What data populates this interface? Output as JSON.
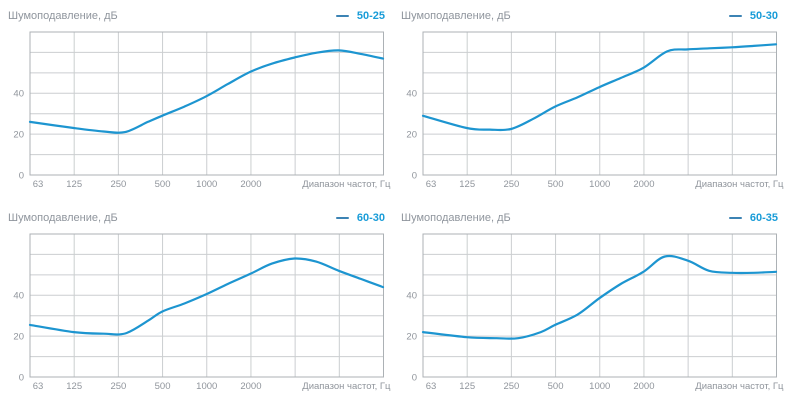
{
  "colors": {
    "curve": "#1d95d0",
    "legend_text": "#189cd8",
    "legend_dash": "#3c83b4",
    "title_text": "#8f959d",
    "tick_text": "#90959c",
    "grid": "#cbced0",
    "border": "#acb1b5",
    "background": "#ffffff"
  },
  "chart_data": {
    "type": "line",
    "xlabel": "Диапазон частот, Гц",
    "ylabel": "Шумоподавление, дБ",
    "x_scale": "log2-octaves",
    "x_range_hz": [
      63,
      16000
    ],
    "x_ticks": [
      "63",
      "125",
      "250",
      "500",
      "1000",
      "2000"
    ],
    "y_ticks": [
      0,
      20,
      40
    ],
    "ylim": [
      0,
      70
    ],
    "y_grid_step": 10,
    "grid": true,
    "legend_position": "top-right",
    "charts": [
      {
        "title": "Шумоподавление, дБ",
        "series_name": "50-25",
        "points": [
          [
            63,
            26
          ],
          [
            125,
            23
          ],
          [
            200,
            21.3
          ],
          [
            280,
            21
          ],
          [
            400,
            26
          ],
          [
            500,
            29
          ],
          [
            710,
            33.5
          ],
          [
            1000,
            38.5
          ],
          [
            1400,
            44.5
          ],
          [
            2000,
            50.5
          ],
          [
            2800,
            54.5
          ],
          [
            4000,
            57.5
          ],
          [
            5600,
            59.8
          ],
          [
            8000,
            61
          ],
          [
            11300,
            59.3
          ],
          [
            16000,
            57
          ]
        ]
      },
      {
        "title": "Шумоподавление, дБ",
        "series_name": "50-30",
        "points": [
          [
            63,
            29
          ],
          [
            125,
            23
          ],
          [
            180,
            22.2
          ],
          [
            250,
            22.5
          ],
          [
            355,
            27.5
          ],
          [
            500,
            33.5
          ],
          [
            710,
            38
          ],
          [
            1000,
            43
          ],
          [
            1400,
            47.5
          ],
          [
            2000,
            52.5
          ],
          [
            2900,
            60.5
          ],
          [
            4000,
            61.5
          ],
          [
            5600,
            62
          ],
          [
            8000,
            62.5
          ],
          [
            11300,
            63.2
          ],
          [
            16000,
            64
          ]
        ]
      },
      {
        "title": "Шумоподавление, дБ",
        "series_name": "60-30",
        "points": [
          [
            63,
            25.5
          ],
          [
            125,
            22
          ],
          [
            200,
            21.2
          ],
          [
            280,
            21.3
          ],
          [
            400,
            27.5
          ],
          [
            500,
            32
          ],
          [
            710,
            36
          ],
          [
            1000,
            40.5
          ],
          [
            1400,
            45.5
          ],
          [
            2000,
            50.5
          ],
          [
            2800,
            55.5
          ],
          [
            4000,
            58
          ],
          [
            5600,
            56.5
          ],
          [
            8000,
            52
          ],
          [
            11300,
            48
          ],
          [
            16000,
            44
          ]
        ]
      },
      {
        "title": "Шумоподавление, дБ",
        "series_name": "60-35",
        "points": [
          [
            63,
            22
          ],
          [
            125,
            19.5
          ],
          [
            200,
            19
          ],
          [
            280,
            19
          ],
          [
            400,
            22
          ],
          [
            500,
            25.5
          ],
          [
            710,
            30.5
          ],
          [
            1000,
            38.5
          ],
          [
            1400,
            45.5
          ],
          [
            2000,
            51.5
          ],
          [
            2800,
            59
          ],
          [
            4000,
            57
          ],
          [
            5600,
            52
          ],
          [
            8000,
            51
          ],
          [
            11300,
            51
          ],
          [
            16000,
            51.5
          ]
        ]
      }
    ]
  }
}
